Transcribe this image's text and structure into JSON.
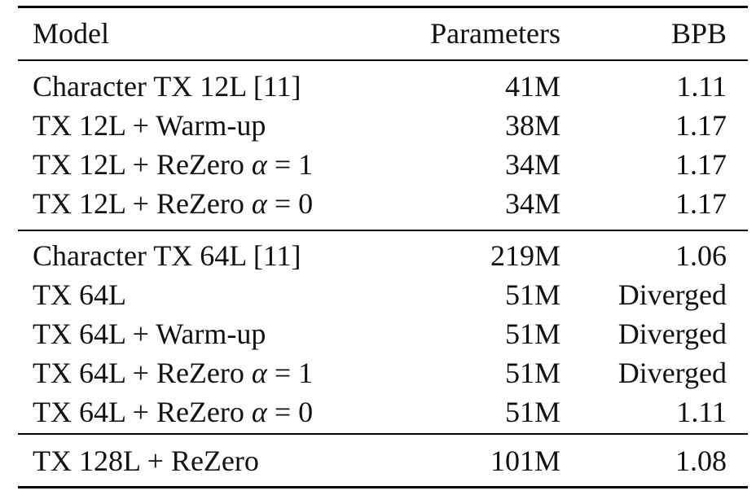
{
  "table": {
    "header": {
      "model": "Model",
      "parameters": "Parameters",
      "bpb": "BPB"
    },
    "groups": [
      {
        "rows": [
          {
            "model": "Character TX 12L [11]",
            "parameters": "41M",
            "bpb": "1.11"
          },
          {
            "model": "TX 12L + Warm-up",
            "parameters": "38M",
            "bpb": "1.17"
          },
          {
            "model_prefix": "TX 12L + ReZero ",
            "alpha_symbol": "α",
            "model_suffix": " = 1",
            "parameters": "34M",
            "bpb": "1.17"
          },
          {
            "model_prefix": "TX 12L + ReZero ",
            "alpha_symbol": "α",
            "model_suffix": " = 0",
            "parameters": "34M",
            "bpb": "1.17"
          }
        ]
      },
      {
        "rows": [
          {
            "model": "Character TX 64L [11]",
            "parameters": "219M",
            "bpb": "1.06"
          },
          {
            "model": "TX 64L",
            "parameters": "51M",
            "bpb": "Diverged"
          },
          {
            "model": "TX 64L + Warm-up",
            "parameters": "51M",
            "bpb": "Diverged"
          },
          {
            "model_prefix": "TX 64L + ReZero ",
            "alpha_symbol": "α",
            "model_suffix": " = 1",
            "parameters": "51M",
            "bpb": "Diverged"
          },
          {
            "model_prefix": "TX 64L + ReZero ",
            "alpha_symbol": "α",
            "model_suffix": " = 0",
            "parameters": "51M",
            "bpb": "1.11"
          }
        ]
      },
      {
        "rows": [
          {
            "model": "TX 128L + ReZero",
            "parameters": "101M",
            "bpb": "1.08"
          }
        ]
      }
    ]
  }
}
